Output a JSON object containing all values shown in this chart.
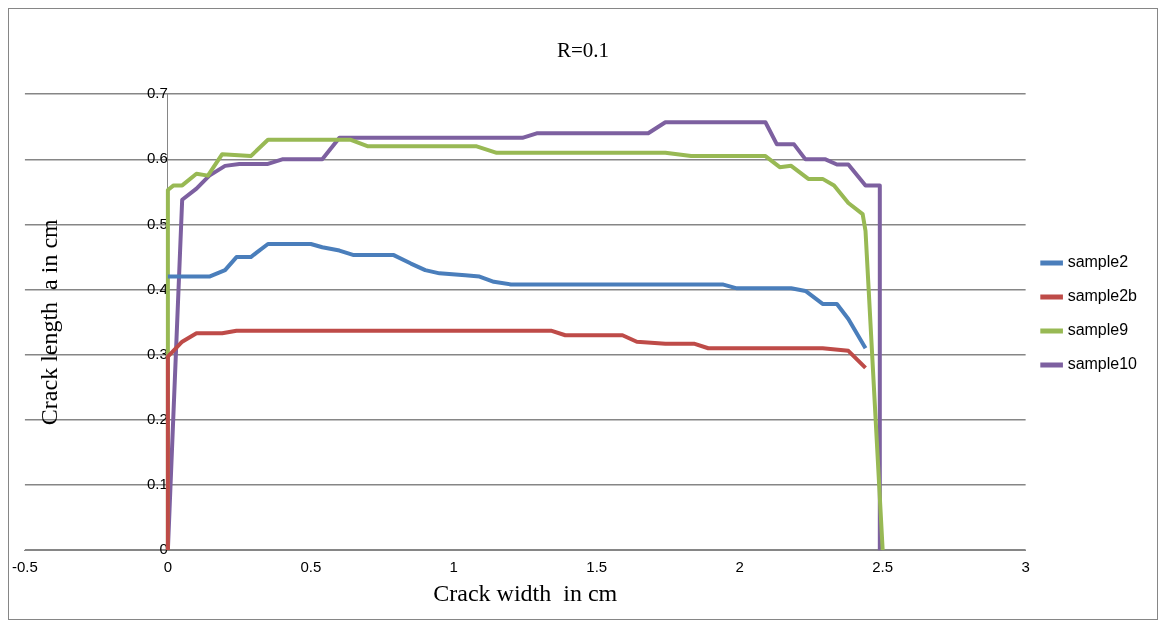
{
  "chart_data": {
    "type": "line",
    "title": "R=0.1",
    "xlabel": "Crack width  in cm",
    "ylabel": "Crack length  a in cm",
    "xlim": [
      -0.5,
      3
    ],
    "xticks": [
      -0.5,
      0,
      0.5,
      1,
      1.5,
      2,
      2.5,
      3
    ],
    "ylim": [
      0,
      0.7
    ],
    "yticks": [
      0,
      0.1,
      0.2,
      0.3,
      0.4,
      0.5,
      0.6,
      0.7
    ],
    "grid": "y",
    "legend": "right",
    "marker": "none",
    "line_style": "solid",
    "series": [
      {
        "name": "sample2",
        "color": "#4a7ebb",
        "x": [
          0,
          0.145,
          0.2,
          0.24,
          0.29,
          0.35,
          0.5,
          0.54,
          0.6,
          0.65,
          0.79,
          0.85,
          0.9,
          0.95,
          1.04,
          1.09,
          1.14,
          1.2,
          1.94,
          1.99,
          2.18,
          2.23,
          2.29,
          2.34,
          2.38,
          2.44
        ],
        "values": [
          0.42,
          0.42,
          0.43,
          0.45,
          0.45,
          0.47,
          0.47,
          0.465,
          0.46,
          0.453,
          0.453,
          0.44,
          0.43,
          0.425,
          0.422,
          0.42,
          0.412,
          0.408,
          0.408,
          0.402,
          0.402,
          0.398,
          0.378,
          0.378,
          0.355,
          0.31
        ]
      },
      {
        "name": "sample2b",
        "color": "#be4b48",
        "x": [
          0,
          0,
          0.05,
          0.1,
          0.19,
          0.24,
          1.34,
          1.39,
          1.59,
          1.64,
          1.74,
          1.84,
          1.89,
          2.29,
          2.38,
          2.44
        ],
        "values": [
          0,
          0.297,
          0.32,
          0.333,
          0.333,
          0.337,
          0.337,
          0.33,
          0.33,
          0.32,
          0.317,
          0.317,
          0.31,
          0.31,
          0.306,
          0.28
        ]
      },
      {
        "name": "sample9",
        "color": "#98b954",
        "x": [
          0,
          0,
          0.02,
          0.05,
          0.1,
          0.14,
          0.19,
          0.29,
          0.35,
          0.64,
          0.7,
          1.08,
          1.15,
          1.74,
          1.83,
          2.09,
          2.14,
          2.18,
          2.24,
          2.29,
          2.33,
          2.38,
          2.43,
          2.44,
          2.5
        ],
        "values": [
          0,
          0.553,
          0.56,
          0.56,
          0.578,
          0.575,
          0.608,
          0.605,
          0.63,
          0.63,
          0.62,
          0.62,
          0.61,
          0.61,
          0.605,
          0.605,
          0.588,
          0.59,
          0.57,
          0.57,
          0.56,
          0.533,
          0.516,
          0.49,
          0
        ]
      },
      {
        "name": "sample10",
        "color": "#7d60a0",
        "x": [
          0,
          0.05,
          0.1,
          0.145,
          0.2,
          0.25,
          0.35,
          0.4,
          0.54,
          0.6,
          1.24,
          1.29,
          1.68,
          1.74,
          2.09,
          2.13,
          2.19,
          2.23,
          2.3,
          2.34,
          2.38,
          2.44,
          2.49,
          2.49
        ],
        "values": [
          0,
          0.538,
          0.555,
          0.575,
          0.59,
          0.593,
          0.593,
          0.6,
          0.6,
          0.633,
          0.633,
          0.64,
          0.64,
          0.657,
          0.657,
          0.623,
          0.623,
          0.6,
          0.6,
          0.592,
          0.592,
          0.56,
          0.56,
          0
        ]
      }
    ]
  }
}
